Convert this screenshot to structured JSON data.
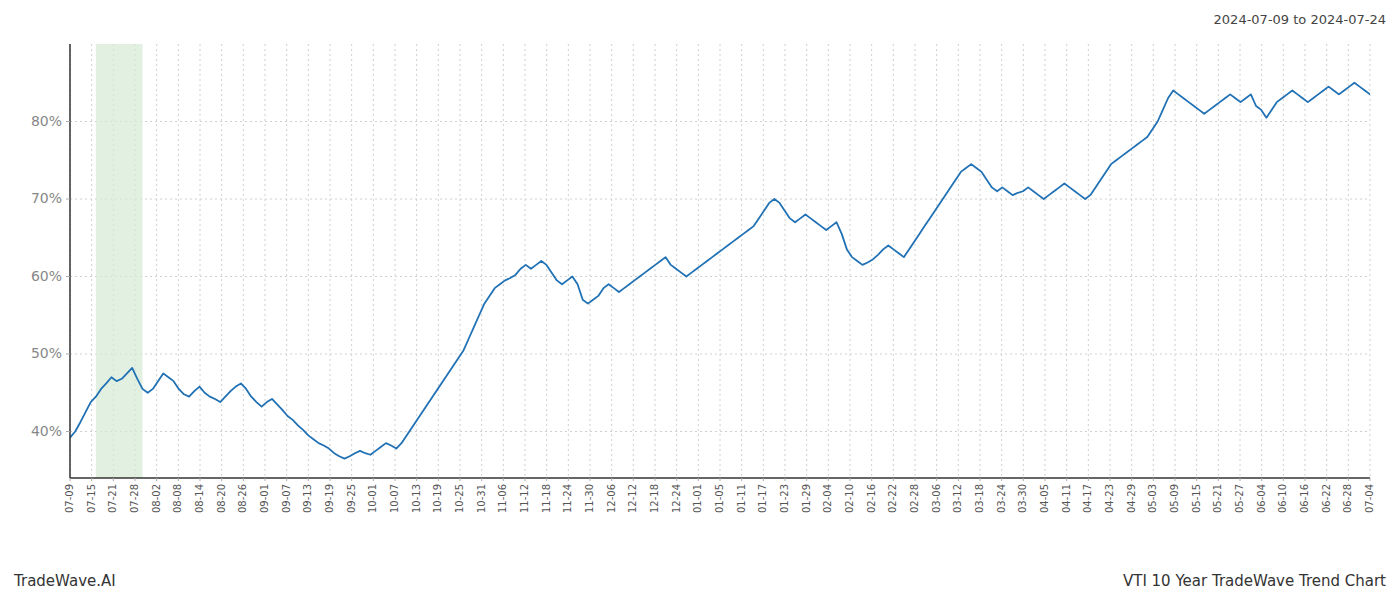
{
  "chart_data": {
    "type": "line",
    "annotations": [
      "2024-07-09 to 2024-07-24",
      "TradeWave.AI",
      "VTI 10 Year TradeWave Trend Chart"
    ],
    "color": "#2171b5",
    "grid": true,
    "band": {
      "start": 5,
      "end": 14,
      "color": "#d6ead6"
    },
    "xlim": [
      0,
      251
    ],
    "ylim": [
      34,
      90
    ],
    "yticks": [
      {
        "value": 40,
        "label": "40%"
      },
      {
        "value": 50,
        "label": "50%"
      },
      {
        "value": 60,
        "label": "60%"
      },
      {
        "value": 70,
        "label": "70%"
      },
      {
        "value": 80,
        "label": "80%"
      }
    ],
    "xticks": [
      {
        "value": 0,
        "label": "07-09"
      },
      {
        "value": 4.1833,
        "label": "07-15"
      },
      {
        "value": 8.3667,
        "label": "07-21"
      },
      {
        "value": 12.55,
        "label": "07-28"
      },
      {
        "value": 16.7333,
        "label": "08-02"
      },
      {
        "value": 20.9167,
        "label": "08-08"
      },
      {
        "value": 25.1,
        "label": "08-14"
      },
      {
        "value": 29.2833,
        "label": "08-20"
      },
      {
        "value": 33.4667,
        "label": "08-26"
      },
      {
        "value": 37.65,
        "label": "09-01"
      },
      {
        "value": 41.8333,
        "label": "09-07"
      },
      {
        "value": 46.0167,
        "label": "09-13"
      },
      {
        "value": 50.2,
        "label": "09-19"
      },
      {
        "value": 54.3833,
        "label": "09-25"
      },
      {
        "value": 58.5667,
        "label": "10-01"
      },
      {
        "value": 62.75,
        "label": "10-07"
      },
      {
        "value": 66.9333,
        "label": "10-13"
      },
      {
        "value": 71.1167,
        "label": "10-19"
      },
      {
        "value": 75.3,
        "label": "10-25"
      },
      {
        "value": 79.4833,
        "label": "10-31"
      },
      {
        "value": 83.6667,
        "label": "11-06"
      },
      {
        "value": 87.85,
        "label": "11-12"
      },
      {
        "value": 92.0333,
        "label": "11-18"
      },
      {
        "value": 96.2167,
        "label": "11-24"
      },
      {
        "value": 100.4,
        "label": "11-30"
      },
      {
        "value": 104.5833,
        "label": "12-06"
      },
      {
        "value": 108.7667,
        "label": "12-12"
      },
      {
        "value": 112.95,
        "label": "12-18"
      },
      {
        "value": 117.1333,
        "label": "12-24"
      },
      {
        "value": 121.3167,
        "label": "01-01"
      },
      {
        "value": 125.5,
        "label": "01-05"
      },
      {
        "value": 129.6833,
        "label": "01-11"
      },
      {
        "value": 133.8667,
        "label": "01-17"
      },
      {
        "value": 138.05,
        "label": "01-23"
      },
      {
        "value": 142.2333,
        "label": "01-29"
      },
      {
        "value": 146.4167,
        "label": "02-04"
      },
      {
        "value": 150.6,
        "label": "02-10"
      },
      {
        "value": 154.7833,
        "label": "02-16"
      },
      {
        "value": 158.9667,
        "label": "02-22"
      },
      {
        "value": 163.15,
        "label": "02-28"
      },
      {
        "value": 167.3333,
        "label": "03-06"
      },
      {
        "value": 171.5167,
        "label": "03-12"
      },
      {
        "value": 175.7,
        "label": "03-18"
      },
      {
        "value": 179.8833,
        "label": "03-24"
      },
      {
        "value": 184.0667,
        "label": "03-30"
      },
      {
        "value": 188.25,
        "label": "04-05"
      },
      {
        "value": 192.4333,
        "label": "04-11"
      },
      {
        "value": 196.6167,
        "label": "04-17"
      },
      {
        "value": 200.8,
        "label": "04-23"
      },
      {
        "value": 204.9833,
        "label": "04-29"
      },
      {
        "value": 209.1667,
        "label": "05-03"
      },
      {
        "value": 213.35,
        "label": "05-09"
      },
      {
        "value": 217.5333,
        "label": "05-15"
      },
      {
        "value": 221.7167,
        "label": "05-21"
      },
      {
        "value": 225.9,
        "label": "05-27"
      },
      {
        "value": 230.0833,
        "label": "06-04"
      },
      {
        "value": 234.2667,
        "label": "06-10"
      },
      {
        "value": 238.45,
        "label": "06-16"
      },
      {
        "value": 242.6333,
        "label": "06-22"
      },
      {
        "value": 246.8167,
        "label": "06-28"
      },
      {
        "value": 251,
        "label": "07-04"
      }
    ],
    "values": [
      39.2,
      40.0,
      41.2,
      42.5,
      43.8,
      44.5,
      45.5,
      46.2,
      47.0,
      46.5,
      46.8,
      47.5,
      48.2,
      46.8,
      45.5,
      45.0,
      45.5,
      46.5,
      47.5,
      47.0,
      46.5,
      45.5,
      44.8,
      44.5,
      45.2,
      45.8,
      45.0,
      44.5,
      44.2,
      43.8,
      44.5,
      45.2,
      45.8,
      46.2,
      45.5,
      44.5,
      43.8,
      43.2,
      43.8,
      44.2,
      43.5,
      42.8,
      42.0,
      41.5,
      40.8,
      40.2,
      39.5,
      39.0,
      38.5,
      38.2,
      37.8,
      37.2,
      36.8,
      36.5,
      36.8,
      37.2,
      37.5,
      37.2,
      37.0,
      37.5,
      38.0,
      38.5,
      38.2,
      37.8,
      38.5,
      39.5,
      40.5,
      41.5,
      42.5,
      43.5,
      44.5,
      45.5,
      46.5,
      47.5,
      48.5,
      49.5,
      50.5,
      52.0,
      53.5,
      55.0,
      56.5,
      57.5,
      58.5,
      59.0,
      59.5,
      59.8,
      60.2,
      61.0,
      61.5,
      61.0,
      61.5,
      62.0,
      61.5,
      60.5,
      59.5,
      59.0,
      59.5,
      60.0,
      59.0,
      57.0,
      56.5,
      57.0,
      57.5,
      58.5,
      59.0,
      58.5,
      58.0,
      58.5,
      59.0,
      59.5,
      60.0,
      60.5,
      61.0,
      61.5,
      62.0,
      62.5,
      61.5,
      61.0,
      60.5,
      60.0,
      60.5,
      61.0,
      61.5,
      62.0,
      62.5,
      63.0,
      63.5,
      64.0,
      64.5,
      65.0,
      65.5,
      66.0,
      66.5,
      67.5,
      68.5,
      69.5,
      70.0,
      69.5,
      68.5,
      67.5,
      67.0,
      67.5,
      68.0,
      67.5,
      67.0,
      66.5,
      66.0,
      66.5,
      67.0,
      65.5,
      63.5,
      62.5,
      62.0,
      61.5,
      61.8,
      62.2,
      62.8,
      63.5,
      64.0,
      63.5,
      63.0,
      62.5,
      63.5,
      64.5,
      65.5,
      66.5,
      67.5,
      68.5,
      69.5,
      70.5,
      71.5,
      72.5,
      73.5,
      74.0,
      74.5,
      74.0,
      73.5,
      72.5,
      71.5,
      71.0,
      71.5,
      71.0,
      70.5,
      70.8,
      71.0,
      71.5,
      71.0,
      70.5,
      70.0,
      70.5,
      71.0,
      71.5,
      72.0,
      71.5,
      71.0,
      70.5,
      70.0,
      70.5,
      71.5,
      72.5,
      73.5,
      74.5,
      75.0,
      75.5,
      76.0,
      76.5,
      77.0,
      77.5,
      78.0,
      79.0,
      80.0,
      81.5,
      83.0,
      84.0,
      83.5,
      83.0,
      82.5,
      82.0,
      81.5,
      81.0,
      81.5,
      82.0,
      82.5,
      83.0,
      83.5,
      83.0,
      82.5,
      83.0,
      83.5,
      82.0,
      81.5,
      80.5,
      81.5,
      82.5,
      83.0,
      83.5,
      84.0,
      83.5,
      83.0,
      82.5,
      83.0,
      83.5,
      84.0,
      84.5,
      84.0,
      83.5,
      84.0,
      84.5,
      85.0,
      84.5,
      84.0,
      83.5
    ]
  }
}
